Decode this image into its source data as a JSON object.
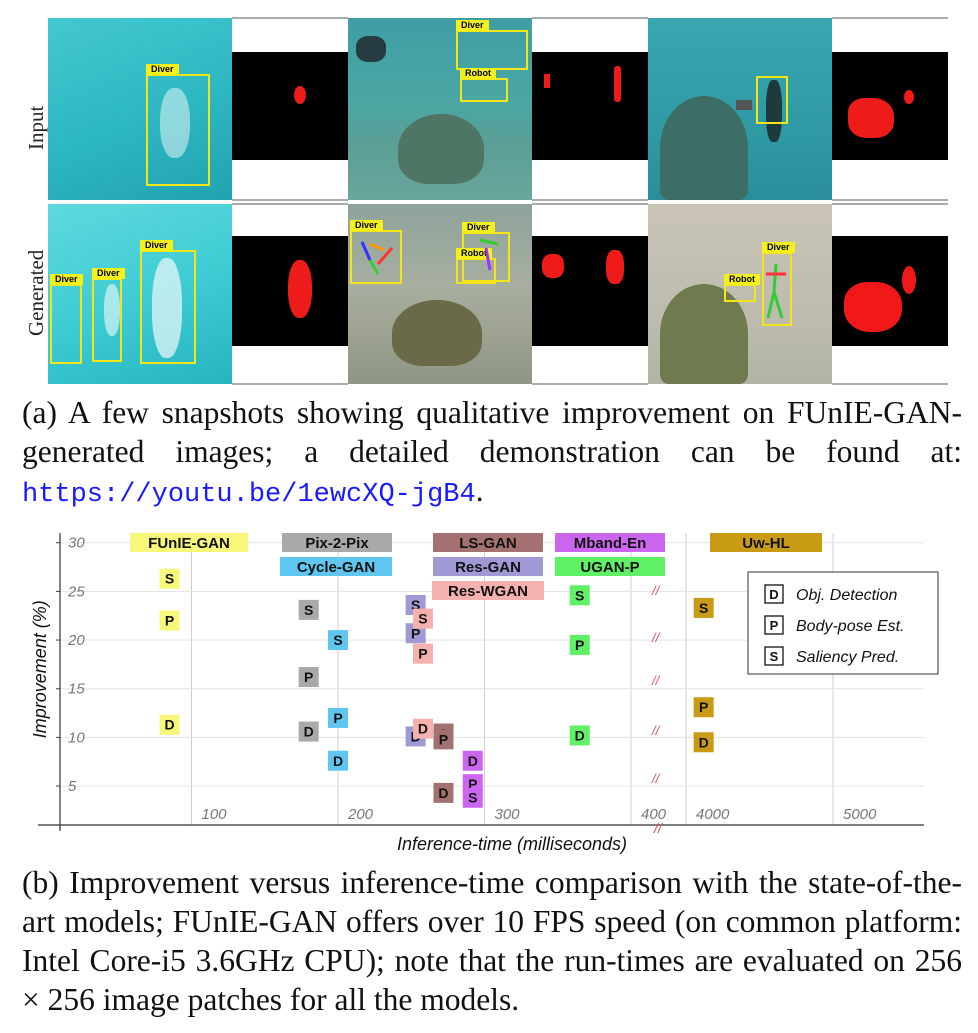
{
  "figure_a": {
    "row_labels": [
      "Input",
      "Generated"
    ],
    "box_labels": {
      "diver": "Diver",
      "robot": "Robot"
    },
    "caption_text": "(a) A few snapshots showing qualitative improvement on FUnIE-GAN-generated images; a detailed demonstration can be found at: ",
    "caption_url": "https://youtu.be/1ewcXQ-jgB4",
    "caption_end": "."
  },
  "chart_data": {
    "type": "scatter",
    "xlabel": "Inference-time (milliseconds)",
    "ylabel": "Improvement (%)",
    "x_ticks": [
      "100",
      "200",
      "300",
      "400",
      "4000",
      "5000"
    ],
    "y_ticks": [
      5,
      10,
      15,
      20,
      25,
      30
    ],
    "ylim": [
      1,
      31
    ],
    "axis_break": "//",
    "grid": true,
    "legend_position": "right",
    "legend": [
      {
        "marker": "D",
        "label": "Obj. Detection"
      },
      {
        "marker": "P",
        "label": "Body-pose Est."
      },
      {
        "marker": "S",
        "label": "Saliency Pred."
      }
    ],
    "models": [
      {
        "name": "FUnIE-GAN",
        "color": "#f7f779",
        "points": [
          {
            "task": "S",
            "x": 85,
            "y": 26.3
          },
          {
            "task": "P",
            "x": 85,
            "y": 22.0
          },
          {
            "task": "D",
            "x": 85,
            "y": 11.3
          }
        ]
      },
      {
        "name": "Pix-2-Pix",
        "color": "#a9a9a9",
        "points": [
          {
            "task": "S",
            "x": 180,
            "y": 23.1
          },
          {
            "task": "P",
            "x": 180,
            "y": 16.2
          },
          {
            "task": "D",
            "x": 180,
            "y": 10.6
          }
        ]
      },
      {
        "name": "Cycle-GAN",
        "color": "#5ec6ef",
        "points": [
          {
            "task": "S",
            "x": 200,
            "y": 20.0
          },
          {
            "task": "P",
            "x": 200,
            "y": 12.0
          },
          {
            "task": "D",
            "x": 200,
            "y": 7.6
          }
        ]
      },
      {
        "name": "LS-GAN",
        "color": "#a27170",
        "points": [
          {
            "task": "S",
            "x": 272,
            "y": 10.4
          },
          {
            "task": "P",
            "x": 272,
            "y": 9.8
          },
          {
            "task": "D",
            "x": 272,
            "y": 4.3
          }
        ]
      },
      {
        "name": "Res-GAN",
        "color": "#9f99d6",
        "points": [
          {
            "task": "S",
            "x": 253,
            "y": 23.6
          },
          {
            "task": "P",
            "x": 253,
            "y": 20.7
          },
          {
            "task": "D",
            "x": 253,
            "y": 10.1
          }
        ]
      },
      {
        "name": "Res-WGAN",
        "color": "#f4b1ae",
        "points": [
          {
            "task": "S",
            "x": 258,
            "y": 22.2
          },
          {
            "task": "P",
            "x": 258,
            "y": 18.6
          },
          {
            "task": "D",
            "x": 258,
            "y": 10.9
          }
        ]
      },
      {
        "name": "Mband-En",
        "color": "#cc66ee",
        "points": [
          {
            "task": "P",
            "x": 292,
            "y": 5.2
          },
          {
            "task": "S",
            "x": 292,
            "y": 3.8
          },
          {
            "task": "D",
            "x": 292,
            "y": 7.6
          }
        ]
      },
      {
        "name": "UGAN-P",
        "color": "#5ff065",
        "points": [
          {
            "task": "S",
            "x": 365,
            "y": 24.6
          },
          {
            "task": "P",
            "x": 365,
            "y": 19.5
          },
          {
            "task": "D",
            "x": 365,
            "y": 10.2
          }
        ]
      },
      {
        "name": "Uw-HL",
        "color": "#c99a14",
        "points": [
          {
            "task": "S",
            "x": 4120,
            "y": 23.3
          },
          {
            "task": "P",
            "x": 4120,
            "y": 13.1
          },
          {
            "task": "D",
            "x": 4120,
            "y": 9.5
          }
        ]
      }
    ]
  },
  "figure_b": {
    "caption_text": "(b) Improvement versus inference-time comparison with the state-of-the-art models; FUnIE-GAN offers over 10 FPS speed (on common platform: Intel Core-i5 3.6GHz CPU); note that the run-times are evaluated on ",
    "caption_math": "256 × 256",
    "caption_end": " image patches for all the models."
  }
}
